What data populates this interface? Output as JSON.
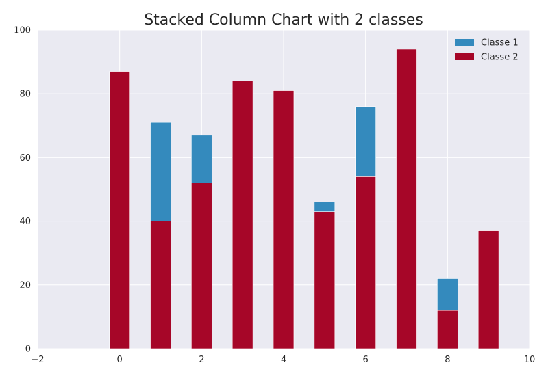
{
  "chart_data": {
    "type": "bar",
    "stacked": true,
    "title": "Stacked Column Chart with 2 classes",
    "xlabel": "",
    "ylabel": "",
    "x": [
      0,
      1,
      2,
      3,
      4,
      5,
      6,
      7,
      8,
      9
    ],
    "series": [
      {
        "name": "Classe 2",
        "color": "#a60628",
        "values": [
          87,
          40,
          52,
          84,
          81,
          43,
          54,
          94,
          12,
          37
        ]
      },
      {
        "name": "Classe 1",
        "color": "#348abd",
        "values": [
          0,
          31,
          15,
          0,
          0,
          3,
          22,
          0,
          10,
          0
        ]
      }
    ],
    "legend_order": [
      "Classe 1",
      "Classe 2"
    ],
    "xlim": [
      -2,
      10
    ],
    "ylim": [
      0,
      100
    ],
    "xticks": [
      -2,
      0,
      2,
      4,
      6,
      8,
      10
    ],
    "yticks": [
      0,
      20,
      40,
      60,
      80,
      100
    ],
    "grid": true,
    "legend_position": "top-right",
    "background_color": "#eaeaf2",
    "grid_color": "#ffffff"
  }
}
